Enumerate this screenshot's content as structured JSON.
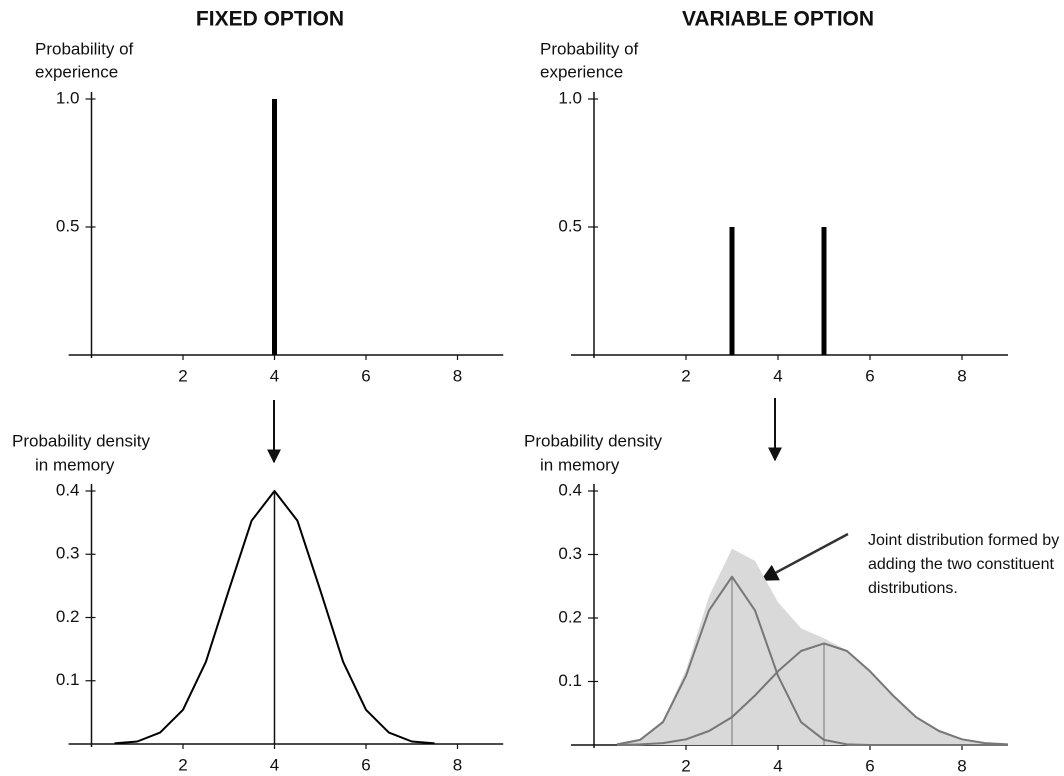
{
  "chart_data": [
    {
      "type": "bar",
      "title": "FIXED OPTION",
      "ylabel": [
        "Probability of",
        "experience"
      ],
      "x": [
        4
      ],
      "values": [
        1.0
      ],
      "color": "#000000",
      "xlim": [
        -0.5,
        9
      ],
      "xticks": [
        2,
        4,
        6,
        8
      ],
      "ylim": [
        0,
        1
      ],
      "yticks": [
        0.5,
        {
          "value": 1,
          "label": "1.0"
        }
      ]
    },
    {
      "type": "bar",
      "title": "VARIABLE OPTION",
      "ylabel": [
        "Probability of",
        "experience"
      ],
      "x": [
        3,
        5
      ],
      "values": [
        0.5,
        0.5
      ],
      "color": "#000000",
      "xlim": [
        -0.5,
        9
      ],
      "xticks": [
        2,
        4,
        6,
        8
      ],
      "ylim": [
        0,
        1
      ],
      "yticks": [
        0.5,
        {
          "value": 1,
          "label": "1.0"
        }
      ]
    },
    {
      "type": "line",
      "ylabel": [
        "Probability density",
        "in memory"
      ],
      "x": [
        0.5,
        1,
        1.5,
        2,
        2.5,
        3,
        3.5,
        4,
        4.5,
        5,
        5.5,
        6,
        6.5,
        7,
        7.5
      ],
      "values": [
        0.001,
        0.004,
        0.018,
        0.054,
        0.13,
        0.243,
        0.353,
        0.4,
        0.353,
        0.243,
        0.13,
        0.054,
        0.018,
        0.004,
        0.001
      ],
      "color": "#000000",
      "mean_lines": [
        4
      ],
      "xlim": [
        -0.5,
        9
      ],
      "xticks": [
        2,
        4,
        6,
        8
      ],
      "ylim": [
        0,
        0.4
      ],
      "yticks": [
        0.1,
        0.2,
        0.3,
        0.4
      ]
    },
    {
      "type": "line",
      "ylabel": [
        "Probability density",
        "in memory"
      ],
      "x": [
        0.5,
        1,
        1.5,
        2,
        2.5,
        3,
        3.5,
        4,
        4.5,
        5,
        5.5,
        6,
        6.5,
        7,
        7.5,
        8,
        8.5,
        9
      ],
      "series": [
        {
          "area": true,
          "color": "#d9d9d9",
          "values": [
            0.001,
            0.009,
            0.039,
            0.118,
            0.234,
            0.309,
            0.29,
            0.225,
            0.184,
            0.168,
            0.149,
            0.116,
            0.078,
            0.044,
            0.022,
            0.009,
            0.003,
            0.001
          ]
        },
        {
          "color": "#777777",
          "values": [
            0.001,
            0.008,
            0.036,
            0.109,
            0.212,
            0.265,
            0.212,
            0.109,
            0.036,
            0.008,
            0.001,
            0,
            0,
            0,
            0,
            0,
            0,
            0
          ]
        },
        {
          "color": "#777777",
          "values": [
            0,
            0.001,
            0.003,
            0.009,
            0.022,
            0.044,
            0.078,
            0.116,
            0.148,
            0.16,
            0.148,
            0.116,
            0.078,
            0.044,
            0.022,
            0.009,
            0.003,
            0.001
          ]
        }
      ],
      "mean_lines": [
        3,
        5
      ],
      "annotation": [
        "Joint distribution formed by",
        "adding the two constituent",
        "distributions."
      ],
      "xlim": [
        -0.5,
        9
      ],
      "xticks": [
        2,
        4,
        6,
        8
      ],
      "ylim": [
        0,
        0.4
      ],
      "yticks": [
        0.1,
        0.2,
        0.3,
        0.4
      ]
    }
  ]
}
